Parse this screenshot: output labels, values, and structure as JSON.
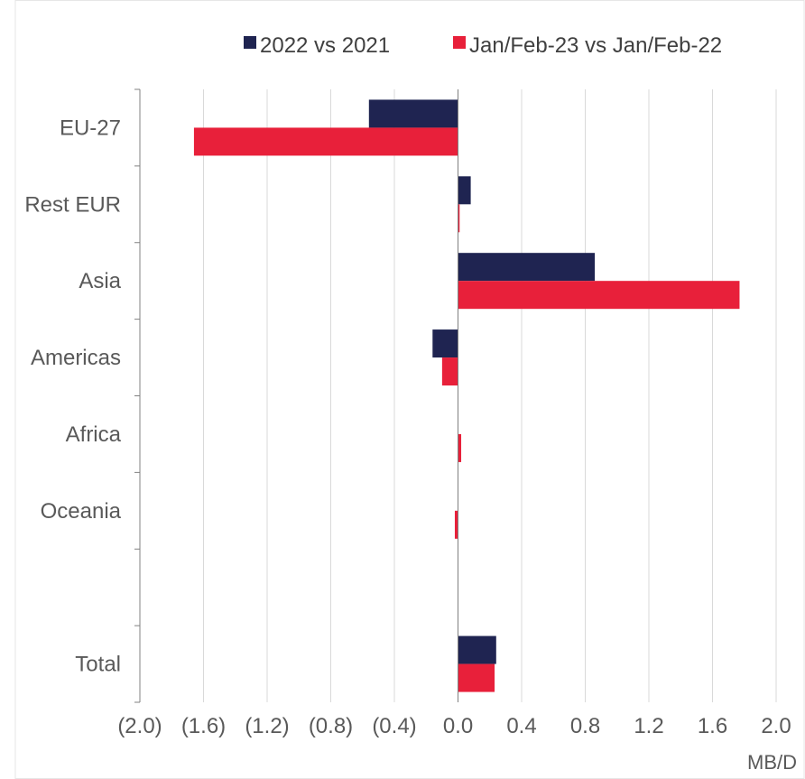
{
  "chart_data": {
    "type": "bar",
    "orientation": "horizontal",
    "categories": [
      "EU-27",
      "Rest EUR",
      "Asia",
      "Americas",
      "Africa",
      "Oceania",
      "",
      "Total"
    ],
    "series": [
      {
        "name": "2022 vs 2021",
        "color": "#1f2451",
        "values": [
          -0.56,
          0.08,
          0.86,
          -0.16,
          0.0,
          0.0,
          null,
          0.24
        ]
      },
      {
        "name": "Jan/Feb-23 vs Jan/Feb-22",
        "color": "#e8203a",
        "values": [
          -1.66,
          0.01,
          1.77,
          -0.1,
          0.02,
          -0.02,
          null,
          0.23
        ]
      }
    ],
    "x_ticks": [
      -2.0,
      -1.6,
      -1.2,
      -0.8,
      -0.4,
      0.0,
      0.4,
      0.8,
      1.2,
      1.6,
      2.0
    ],
    "x_tick_labels": [
      "(2.0)",
      "(1.6)",
      "(1.2)",
      "(0.8)",
      "(0.4)",
      "0.0",
      "0.4",
      "0.8",
      "1.2",
      "1.6",
      "2.0"
    ],
    "xlim": [
      -2.0,
      2.0
    ],
    "xlabel": "MB/D",
    "ylabel": "",
    "title": "",
    "grid": "vertical",
    "legend_position": "top"
  }
}
